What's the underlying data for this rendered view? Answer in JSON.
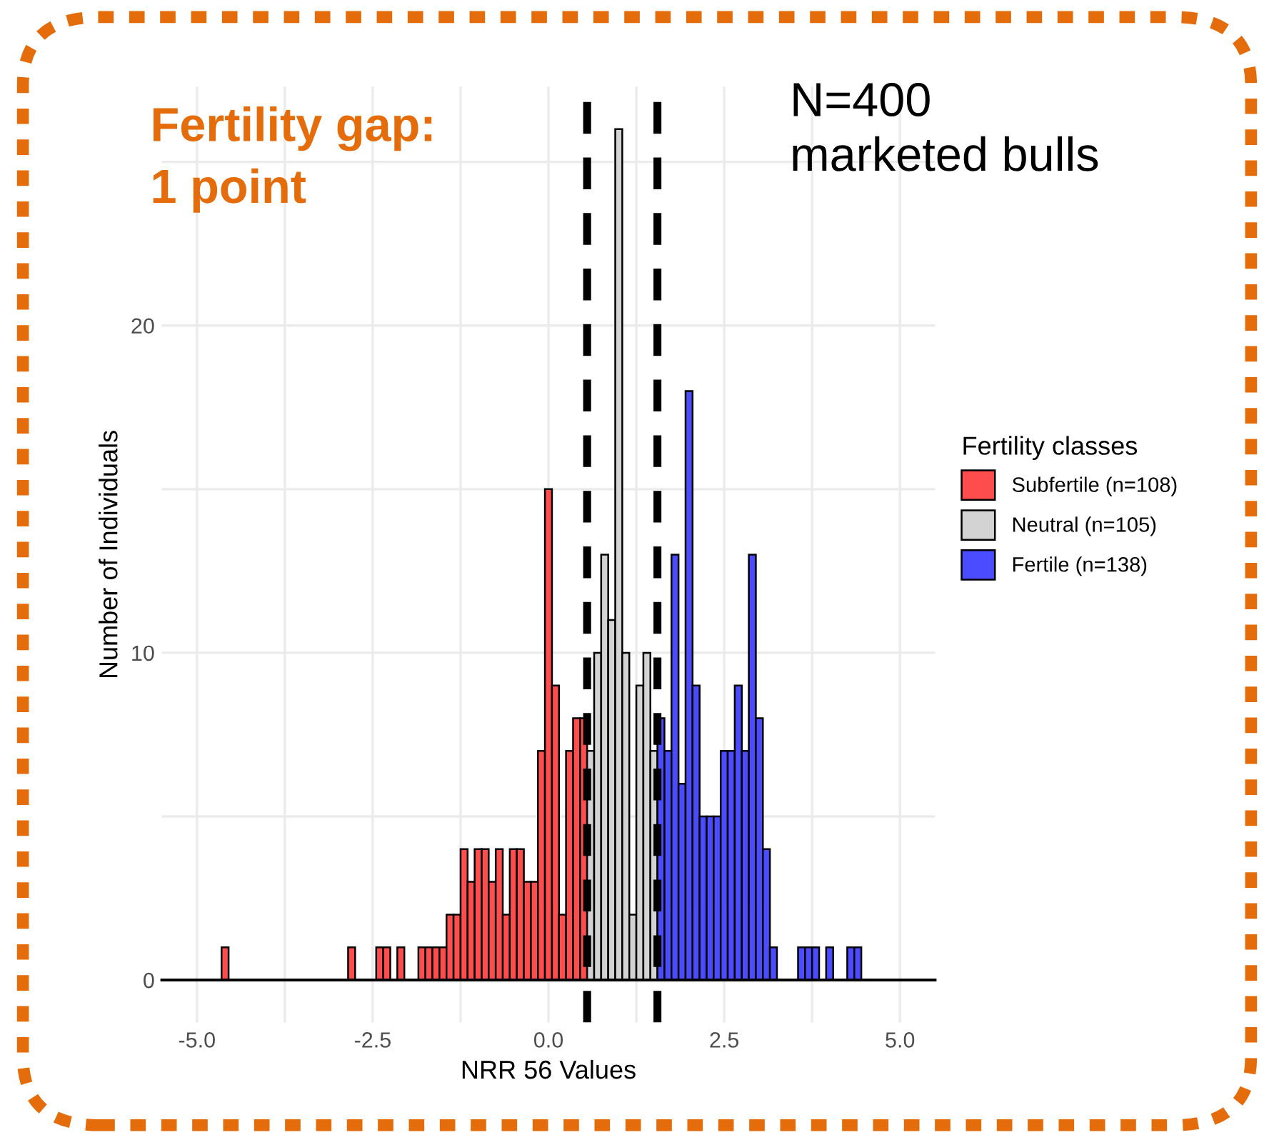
{
  "chart_data": {
    "type": "histogram",
    "title": "Fertility gap:\n1 point",
    "xlabel": "NRR 56 Values",
    "ylabel": "Number of Individuals",
    "legend_title": "Fertility classes",
    "annotations": [
      "N=400\nmarketed bulls"
    ],
    "bins": [
      -4.65,
      -4.55,
      -4.45,
      -4.35,
      -4.25,
      -4.15,
      -4.05,
      -3.95,
      -3.85,
      -3.75,
      -3.65,
      -3.55,
      -3.45,
      -3.35,
      -3.25,
      -3.15,
      -3.05,
      -2.95,
      -2.85,
      -2.75,
      -2.65,
      -2.55,
      -2.45,
      -2.35,
      -2.25,
      -2.15,
      -2.05,
      -1.95,
      -1.85,
      -1.75,
      -1.65,
      -1.55,
      -1.45,
      -1.35,
      -1.25,
      -1.15,
      -1.05,
      -0.95,
      -0.85,
      -0.75,
      -0.65,
      -0.55,
      -0.45,
      -0.35,
      -0.25,
      -0.15,
      -0.05,
      0.05,
      0.15,
      0.25,
      0.35,
      0.45,
      0.55,
      0.65,
      0.75,
      0.85,
      0.95,
      1.05,
      1.15,
      1.25,
      1.35,
      1.45,
      1.55,
      1.65,
      1.75,
      1.85,
      1.95,
      2.05,
      2.15,
      2.25,
      2.35,
      2.45,
      2.55,
      2.65,
      2.75,
      2.85,
      2.95,
      3.05,
      3.15,
      3.25,
      3.35,
      3.45,
      3.55,
      3.65,
      3.75,
      3.85,
      3.95,
      4.05,
      4.15,
      4.25,
      4.35,
      4.45
    ],
    "series": [
      {
        "name": "Subfertile (n=108)",
        "color": "#ff4c4c",
        "values": [
          1,
          0,
          0,
          0,
          0,
          0,
          0,
          0,
          0,
          0,
          0,
          0,
          0,
          0,
          0,
          0,
          0,
          0,
          1,
          0,
          0,
          0,
          1,
          1,
          0,
          1,
          0,
          0,
          1,
          1,
          1,
          1,
          2,
          2,
          4,
          3,
          4,
          4,
          3,
          4,
          2,
          4,
          4,
          3,
          3,
          7,
          15,
          9,
          2,
          7,
          8,
          8,
          null,
          null,
          null,
          null,
          null,
          null,
          null,
          null,
          null,
          null,
          null,
          null,
          null,
          null,
          null,
          null,
          null,
          null,
          null,
          null,
          null,
          null,
          null,
          null,
          null,
          null,
          null,
          null,
          null,
          null,
          null,
          null,
          null,
          null,
          null,
          null,
          null,
          null,
          null
        ]
      },
      {
        "name": "Neutral (n=105)",
        "color": "#d3d3d3",
        "values": [
          null,
          null,
          null,
          null,
          null,
          null,
          null,
          null,
          null,
          null,
          null,
          null,
          null,
          null,
          null,
          null,
          null,
          null,
          null,
          null,
          null,
          null,
          null,
          null,
          null,
          null,
          null,
          null,
          null,
          null,
          null,
          null,
          null,
          null,
          null,
          null,
          null,
          null,
          null,
          null,
          null,
          null,
          null,
          null,
          null,
          null,
          null,
          null,
          null,
          null,
          null,
          null,
          7,
          10,
          13,
          11,
          26,
          10,
          2,
          9,
          10,
          7,
          null,
          null,
          null,
          null,
          null,
          null,
          null,
          null,
          null,
          null,
          null,
          null,
          null,
          null,
          null,
          null,
          null,
          null,
          null,
          null,
          null,
          null,
          null,
          null,
          null,
          null,
          null,
          null,
          null
        ]
      },
      {
        "name": "Fertile (n=138)",
        "color": "#4b4bff",
        "values": [
          null,
          null,
          null,
          null,
          null,
          null,
          null,
          null,
          null,
          null,
          null,
          null,
          null,
          null,
          null,
          null,
          null,
          null,
          null,
          null,
          null,
          null,
          null,
          null,
          null,
          null,
          null,
          null,
          null,
          null,
          null,
          null,
          null,
          null,
          null,
          null,
          null,
          null,
          null,
          null,
          null,
          null,
          null,
          null,
          null,
          null,
          null,
          null,
          null,
          null,
          null,
          null,
          null,
          null,
          null,
          null,
          null,
          null,
          null,
          null,
          null,
          null,
          8,
          7,
          13,
          6,
          18,
          9,
          5,
          5,
          5,
          7,
          7,
          9,
          7,
          13,
          8,
          4,
          1,
          0,
          0,
          0,
          1,
          1,
          1,
          0,
          1,
          0,
          0,
          1,
          1
        ]
      }
    ],
    "ref_lines": [
      {
        "axis": "x",
        "value": 0.55,
        "color": "#000000",
        "line_style": "dashed"
      },
      {
        "axis": "x",
        "value": 1.55,
        "color": "#000000",
        "line_style": "dashed"
      }
    ],
    "xlim": [
      -5.5,
      5.5
    ],
    "xticks": [
      {
        "value": -5,
        "label": "-5.0"
      },
      {
        "value": -3.75,
        "label": null
      },
      -2.5,
      {
        "value": -1.25,
        "label": null
      },
      {
        "value": 0,
        "label": "0.0"
      },
      {
        "value": 1.25,
        "label": null
      },
      2.5,
      {
        "value": 3.75,
        "label": null
      },
      {
        "value": 5,
        "label": "5.0"
      }
    ],
    "ylim": [
      -1.3,
      27.3
    ],
    "yticks": [
      0,
      {
        "value": 5,
        "label": null
      },
      10,
      {
        "value": 15,
        "label": null
      },
      20,
      {
        "value": 25,
        "label": null
      }
    ],
    "grid": true,
    "legend": "right"
  }
}
